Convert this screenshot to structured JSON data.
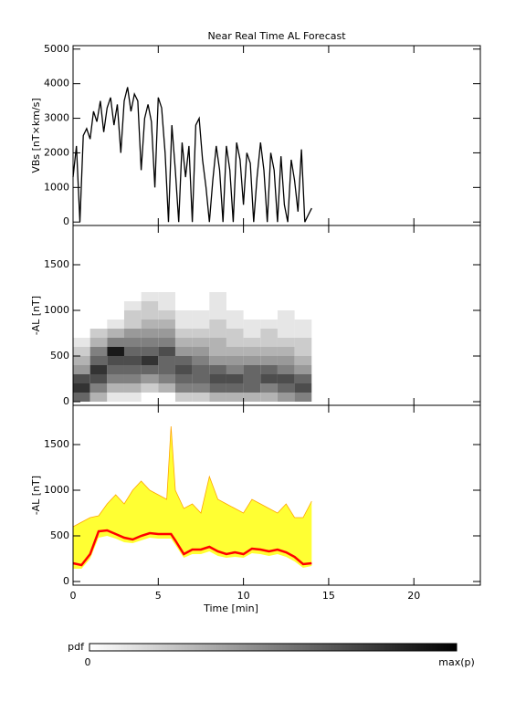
{
  "chart_data": [
    {
      "type": "line",
      "title": "Near Real Time AL Forecast",
      "ylabel": "VBs [nT×km/s]",
      "xlim": [
        0,
        23.9
      ],
      "xticks": [
        0,
        5,
        10,
        15,
        20
      ],
      "ylim": [
        -100,
        5100
      ],
      "yticks": [
        0,
        1000,
        2000,
        3000,
        4000,
        5000
      ],
      "x": [
        0,
        0.2,
        0.4,
        0.6,
        0.8,
        1,
        1.2,
        1.4,
        1.6,
        1.8,
        2,
        2.2,
        2.4,
        2.6,
        2.8,
        3,
        3.2,
        3.4,
        3.6,
        3.8,
        4,
        4.2,
        4.4,
        4.6,
        4.8,
        5,
        5.2,
        5.4,
        5.6,
        5.8,
        6,
        6.2,
        6.4,
        6.6,
        6.8,
        7,
        7.2,
        7.4,
        7.6,
        7.8,
        8,
        8.2,
        8.4,
        8.6,
        8.8,
        9,
        9.2,
        9.4,
        9.6,
        9.8,
        10,
        10.2,
        10.4,
        10.6,
        10.8,
        11,
        11.2,
        11.4,
        11.6,
        11.8,
        12,
        12.2,
        12.4,
        12.6,
        12.8,
        13,
        13.2,
        13.4,
        13.6,
        13.8,
        14
      ],
      "series": [
        {
          "color": "#000000",
          "values": [
            1300,
            2200,
            0,
            2500,
            2700,
            2400,
            3200,
            2900,
            3500,
            2600,
            3300,
            3600,
            2800,
            3400,
            2000,
            3500,
            3900,
            3200,
            3700,
            3500,
            1500,
            3000,
            3400,
            2900,
            1000,
            3600,
            3300,
            2000,
            0,
            2800,
            1500,
            0,
            2300,
            1300,
            2200,
            0,
            2800,
            3000,
            1800,
            1000,
            0,
            1200,
            2200,
            1500,
            0,
            2200,
            1500,
            0,
            2300,
            1800,
            500,
            2000,
            1700,
            0,
            1300,
            2300,
            1500,
            0,
            2000,
            1500,
            0,
            1900,
            500,
            0,
            1800,
            1200,
            300,
            2100,
            0,
            200,
            400
          ]
        }
      ]
    },
    {
      "type": "heatmap",
      "ylabel": "-AL [nT]",
      "xlim": [
        0,
        23.9
      ],
      "xticks": [
        0,
        5,
        10,
        15,
        20
      ],
      "ylim": [
        -40,
        1930
      ],
      "yticks": [
        0,
        500,
        1000,
        1500
      ],
      "x_edges": [
        0,
        1,
        2,
        3,
        4,
        5,
        6,
        7,
        8,
        9,
        10,
        11,
        12,
        13,
        14
      ],
      "y_edges": [
        0,
        100,
        200,
        300,
        400,
        500,
        600,
        700,
        800,
        900,
        1000,
        1100,
        1200
      ],
      "z": [
        [
          0.6,
          0.8,
          0.7,
          0.4,
          0.3,
          0.2,
          0.1,
          0,
          0,
          0,
          0,
          0
        ],
        [
          0.3,
          0.5,
          0.7,
          0.8,
          0.6,
          0.5,
          0.3,
          0.2,
          0,
          0,
          0,
          0
        ],
        [
          0.1,
          0.3,
          0.5,
          0.6,
          0.7,
          0.9,
          0.5,
          0.3,
          0.1,
          0,
          0,
          0
        ],
        [
          0.1,
          0.3,
          0.5,
          0.6,
          0.7,
          0.6,
          0.5,
          0.4,
          0.2,
          0.2,
          0.1,
          0
        ],
        [
          0,
          0.2,
          0.4,
          0.6,
          0.8,
          0.6,
          0.5,
          0.4,
          0.3,
          0.2,
          0.2,
          0.1
        ],
        [
          0,
          0.3,
          0.5,
          0.6,
          0.6,
          0.7,
          0.5,
          0.4,
          0.3,
          0.2,
          0.1,
          0.1
        ],
        [
          0.2,
          0.5,
          0.6,
          0.7,
          0.6,
          0.4,
          0.3,
          0.2,
          0.1,
          0.1,
          0,
          0
        ],
        [
          0.2,
          0.5,
          0.6,
          0.6,
          0.5,
          0.4,
          0.3,
          0.2,
          0.1,
          0.1,
          0,
          0
        ],
        [
          0.3,
          0.6,
          0.7,
          0.6,
          0.4,
          0.3,
          0.3,
          0.2,
          0.2,
          0.1,
          0.1,
          0.1
        ],
        [
          0.3,
          0.6,
          0.7,
          0.5,
          0.4,
          0.3,
          0.2,
          0.2,
          0.1,
          0.1,
          0,
          0
        ],
        [
          0.3,
          0.6,
          0.6,
          0.6,
          0.4,
          0.3,
          0.2,
          0.1,
          0.1,
          0,
          0,
          0
        ],
        [
          0.3,
          0.5,
          0.7,
          0.6,
          0.4,
          0.3,
          0.2,
          0.2,
          0.1,
          0,
          0,
          0
        ],
        [
          0.4,
          0.6,
          0.7,
          0.5,
          0.4,
          0.3,
          0.2,
          0.1,
          0.1,
          0.1,
          0,
          0
        ],
        [
          0.5,
          0.7,
          0.6,
          0.4,
          0.3,
          0.2,
          0.2,
          0.1,
          0.1,
          0,
          0,
          0
        ]
      ],
      "colorbar": {
        "label": "pdf",
        "min_label": "0",
        "max_label": "max(p)"
      }
    },
    {
      "type": "band",
      "ylabel": "-AL [nT]",
      "xlabel": "Time [min]",
      "xlim": [
        0,
        23.9
      ],
      "xticks": [
        0,
        5,
        10,
        15,
        20
      ],
      "ylim": [
        -40,
        1930
      ],
      "yticks": [
        0,
        500,
        1000,
        1500
      ],
      "x": [
        0,
        0.5,
        1,
        1.5,
        2,
        2.5,
        3,
        3.5,
        4,
        4.5,
        5,
        5.5,
        5.75,
        6,
        6.5,
        7,
        7.5,
        8,
        8.5,
        9,
        9.5,
        10,
        10.5,
        11,
        11.5,
        12,
        12.5,
        13,
        13.5,
        14
      ],
      "upper": [
        600,
        650,
        700,
        720,
        850,
        950,
        850,
        1000,
        1100,
        1000,
        950,
        900,
        1700,
        1000,
        800,
        850,
        750,
        1150,
        900,
        850,
        800,
        750,
        900,
        850,
        800,
        750,
        850,
        700,
        700,
        880
      ],
      "lower": [
        140,
        140,
        250,
        480,
        500,
        470,
        430,
        420,
        450,
        480,
        470,
        470,
        470,
        400,
        260,
        300,
        300,
        330,
        280,
        260,
        270,
        260,
        310,
        300,
        280,
        300,
        270,
        220,
        150,
        170
      ],
      "upper_color": "#ffa500",
      "band_color": "#ffff33",
      "median": {
        "color": "#ff0000",
        "values": [
          200,
          180,
          300,
          550,
          560,
          520,
          480,
          460,
          500,
          530,
          520,
          520,
          520,
          450,
          300,
          350,
          350,
          380,
          330,
          300,
          320,
          300,
          360,
          350,
          330,
          350,
          320,
          270,
          190,
          200
        ]
      }
    }
  ]
}
